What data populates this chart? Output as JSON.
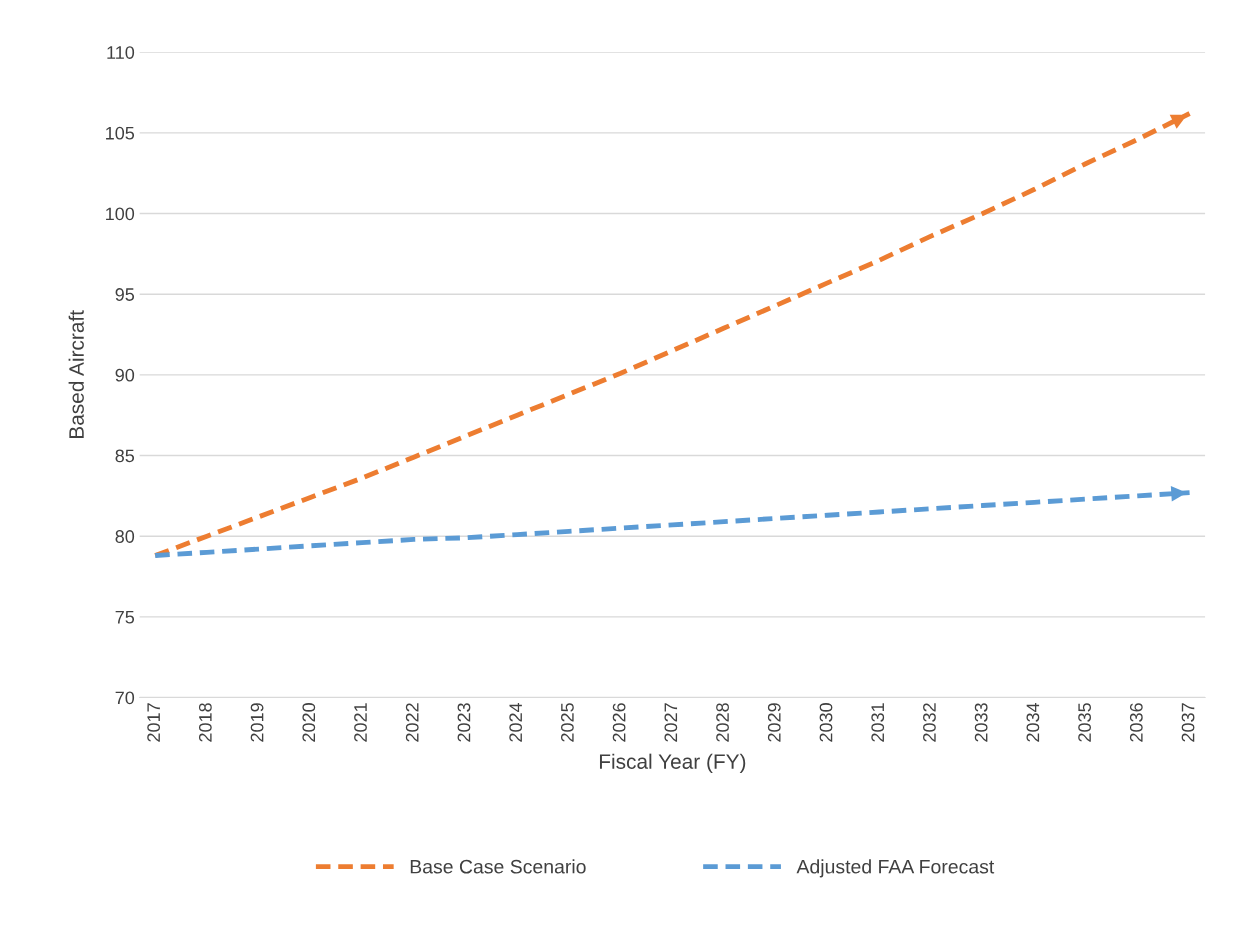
{
  "chart_data": {
    "type": "line",
    "xlabel": "Fiscal Year (FY)",
    "ylabel": "Based Aircraft",
    "categories": [
      "2017",
      "2018",
      "2019",
      "2020",
      "2021",
      "2022",
      "2023",
      "2024",
      "2025",
      "2026",
      "2027",
      "2028",
      "2029",
      "2030",
      "2031",
      "2032",
      "2033",
      "2034",
      "2035",
      "2036",
      "2037"
    ],
    "series": [
      {
        "name": "Base Case Scenario",
        "color": "#ed7d31",
        "values": [
          78.8,
          80.0,
          81.2,
          82.4,
          83.6,
          84.9,
          86.2,
          87.5,
          88.8,
          90.1,
          91.5,
          92.9,
          94.3,
          95.7,
          97.1,
          98.6,
          100.0,
          101.5,
          103.1,
          104.6,
          106.2
        ]
      },
      {
        "name": "Adjusted FAA Forecast",
        "color": "#5b9bd5",
        "values": [
          78.8,
          79.0,
          79.2,
          79.4,
          79.6,
          79.8,
          79.9,
          80.1,
          80.3,
          80.5,
          80.7,
          80.9,
          81.1,
          81.3,
          81.5,
          81.7,
          81.9,
          82.1,
          82.3,
          82.5,
          82.7
        ]
      }
    ],
    "ylim": [
      70,
      110
    ],
    "yticks": [
      70,
      75,
      80,
      85,
      90,
      95,
      100,
      105,
      110
    ],
    "grid": "y",
    "legend": "bottom",
    "line_style": "dashed",
    "marker": "none"
  }
}
